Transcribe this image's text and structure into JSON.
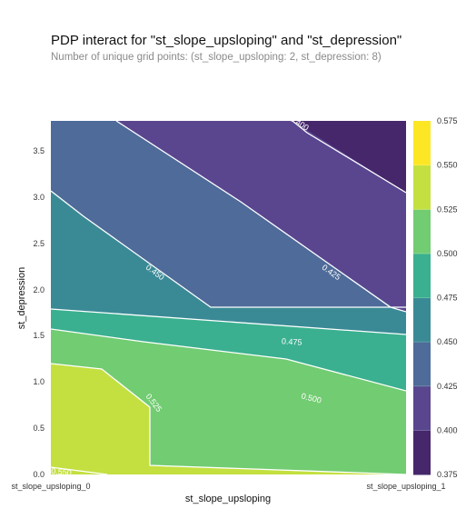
{
  "title": "PDP interact for \"st_slope_upsloping\" and \"st_depression\"",
  "subtitle": "Number of unique grid points: (st_slope_upsloping: 2, st_depression: 8)",
  "chart_data": {
    "type": "heatmap",
    "subtype": "filled-contour",
    "xlabel": "st_slope_upsloping",
    "ylabel": "st_depression",
    "x_ticks": [
      "st_slope_upsloping_0",
      "st_slope_upsloping_1"
    ],
    "y_ticks": [
      "0.0",
      "0.5",
      "1.0",
      "1.5",
      "2.0",
      "2.5",
      "3.0",
      "3.5"
    ],
    "ylim": [
      0.0,
      3.8
    ],
    "colorbar": {
      "levels": [
        0.375,
        0.4,
        0.425,
        0.45,
        0.475,
        0.5,
        0.525,
        0.55,
        0.575
      ],
      "tick_labels": [
        "0.375",
        "0.400",
        "0.425",
        "0.450",
        "0.475",
        "0.500",
        "0.525",
        "0.550",
        "0.575"
      ],
      "colors": [
        "#46276b",
        "#59468f",
        "#4e6b99",
        "#3a8a96",
        "#3ab090",
        "#72cc72",
        "#c3e040",
        "#fde725"
      ]
    },
    "contour_labels": [
      "0.400",
      "0.425",
      "0.450",
      "0.475",
      "0.500",
      "0.525",
      "0.550"
    ],
    "grid_x": [
      0,
      1
    ],
    "grid_y": [
      0.0,
      0.2,
      0.4,
      0.8,
      1.4,
      1.8,
      2.6,
      3.8
    ],
    "values": [
      [
        0.552,
        0.525
      ],
      [
        0.548,
        0.512
      ],
      [
        0.543,
        0.505
      ],
      [
        0.535,
        0.495
      ],
      [
        0.515,
        0.472
      ],
      [
        0.475,
        0.452
      ],
      [
        0.455,
        0.43
      ],
      [
        0.44,
        0.39
      ]
    ]
  }
}
